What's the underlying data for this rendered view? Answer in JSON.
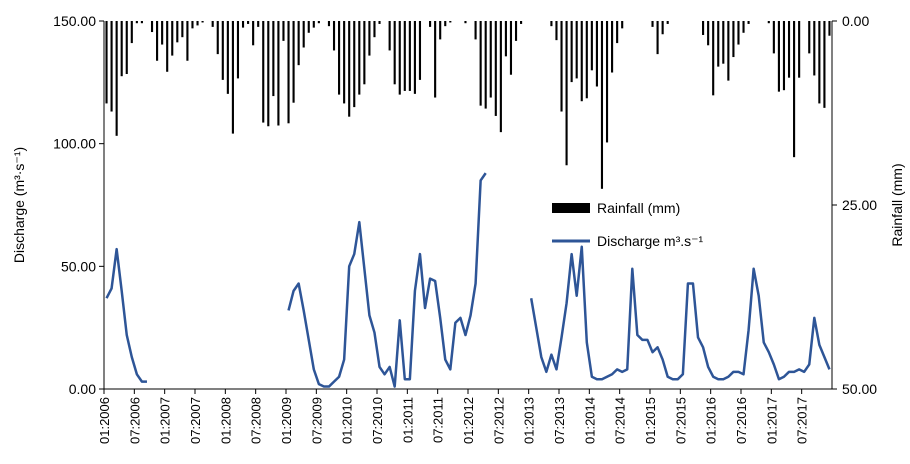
{
  "chart_data": {
    "type": "bar+line",
    "title": "",
    "x_tick_labels": [
      "01:2006",
      "07:2006",
      "01:2007",
      "07:2007",
      "01:2008",
      "07:2008",
      "01:2009",
      "07:2009",
      "01:2010",
      "07:2010",
      "01:2011",
      "07:2011",
      "01:2012",
      "07:2012",
      "01:2013",
      "07:2013",
      "01:2014",
      "07:2014",
      "01:2015",
      "07:2015",
      "01:2016",
      "07:2016",
      "01:2017",
      "07:2017"
    ],
    "x_range_months": "01:2006 – 12:2017 (144 monthly points)",
    "y_left": {
      "label": "Discharge (m³·s⁻¹)",
      "ticks": [
        "0.00",
        "50.00",
        "100.00",
        "150.00"
      ],
      "range": [
        0,
        150
      ]
    },
    "y_right": {
      "label": "Rainfall (mm)",
      "ticks": [
        "0.00",
        "25.00",
        "50.00"
      ],
      "range": [
        0,
        50
      ],
      "inverted": true
    },
    "legend": {
      "placement": "center-right",
      "items": [
        "Rainfall (mm)",
        "Discharge m³.s⁻¹"
      ]
    },
    "series": [
      {
        "name": "Rainfall (mm)",
        "kind": "bar",
        "axis": "right",
        "color": "#000000",
        "values": [
          11.2,
          12.3,
          15.6,
          7.5,
          7.2,
          3.0,
          0.3,
          0.3,
          null,
          1.5,
          5.4,
          3.2,
          6.9,
          4.7,
          2.9,
          2.2,
          5.4,
          1.0,
          0.6,
          0.2,
          null,
          0.8,
          4.5,
          8.0,
          9.9,
          15.3,
          7.8,
          0.9,
          0.4,
          3.3,
          0.8,
          13.8,
          14.3,
          10.2,
          14.2,
          2.7,
          13.9,
          11.1,
          6.0,
          3.6,
          1.6,
          0.9,
          0.3,
          null,
          0.7,
          4.0,
          10.0,
          11.2,
          13.0,
          11.7,
          10.0,
          8.6,
          4.7,
          2.2,
          0.4,
          null,
          4.0,
          8.6,
          10.0,
          9.5,
          9.5,
          9.9,
          8.0,
          null,
          0.8,
          10.4,
          2.5,
          0.7,
          0.2,
          null,
          null,
          0.3,
          null,
          2.5,
          11.5,
          11.9,
          10.4,
          12.9,
          15.1,
          4.8,
          7.3,
          2.7,
          0.4,
          null,
          null,
          null,
          null,
          null,
          0.7,
          2.6,
          12.3,
          19.6,
          8.3,
          7.8,
          10.9,
          10.5,
          6.7,
          8.9,
          22.8,
          16.5,
          7.0,
          3.0,
          1.0,
          null,
          null,
          null,
          null,
          null,
          0.8,
          4.5,
          1.8,
          0.4,
          null,
          null,
          null,
          null,
          null,
          null,
          1.9,
          3.3,
          10.1,
          6.2,
          5.8,
          8.1,
          4.9,
          3.2,
          1.6,
          0.4,
          null,
          null,
          null,
          0.3,
          4.4,
          9.6,
          9.4,
          7.7,
          18.5,
          7.7,
          null,
          4.4,
          7.4,
          11.2,
          11.8,
          2.0
        ]
      },
      {
        "name": "Discharge m³.s⁻¹",
        "kind": "line",
        "axis": "left",
        "color": "#2e5597",
        "values": [
          37,
          41,
          57,
          40,
          22,
          13,
          6,
          3,
          3,
          null,
          null,
          null,
          null,
          null,
          null,
          null,
          null,
          null,
          null,
          null,
          null,
          null,
          null,
          null,
          null,
          null,
          null,
          null,
          null,
          null,
          null,
          null,
          null,
          null,
          null,
          null,
          32,
          40,
          43,
          32,
          20,
          8,
          2,
          1,
          1,
          3,
          5,
          12,
          50,
          55,
          68,
          49,
          30,
          23,
          9,
          6,
          9,
          1,
          28,
          4,
          4,
          40,
          55,
          33,
          45,
          44,
          29,
          12,
          8,
          27,
          29,
          22,
          30,
          43,
          85,
          88,
          null,
          null,
          null,
          null,
          null,
          null,
          null,
          null,
          37,
          25,
          13,
          7,
          14,
          8,
          21,
          35,
          55,
          38,
          58,
          19,
          5,
          4,
          4,
          5,
          6,
          8,
          7,
          8,
          49,
          22,
          20,
          20,
          15,
          17,
          12,
          5,
          4,
          4,
          6,
          43,
          43,
          21,
          17,
          9,
          5,
          4,
          4,
          5,
          7,
          7,
          6,
          24,
          49,
          38,
          19,
          15,
          10,
          4,
          5,
          7,
          7,
          8,
          7,
          10,
          29,
          18,
          13,
          8
        ]
      }
    ]
  }
}
